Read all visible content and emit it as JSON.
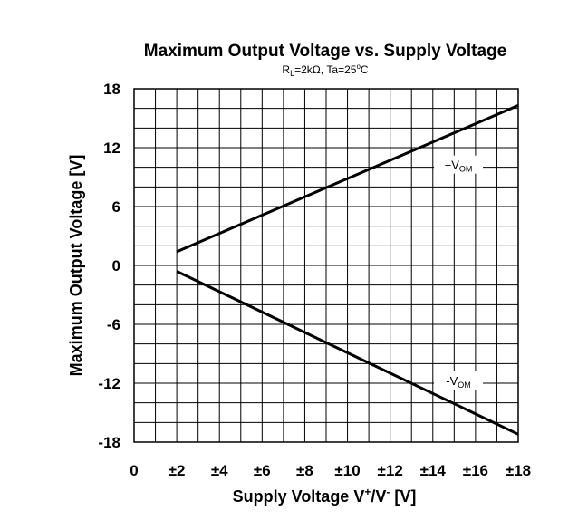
{
  "chart_data": {
    "type": "line",
    "title": "Maximum Output Voltage vs. Supply Voltage",
    "subtitle": {
      "r": "R",
      "r_sub": "L",
      "rest": "=2kΩ, Ta=25",
      "deg": "o",
      "unit": "C"
    },
    "xlabel": {
      "main": "Supply Voltage V",
      "sup1": "+",
      "mid": "/V",
      "sup2": "-",
      "end": " [V]"
    },
    "ylabel": "Maximum Output Voltage [V]",
    "x_ticks": [
      "0",
      "±2",
      "±4",
      "±6",
      "±8",
      "±10",
      "±12",
      "±14",
      "±16",
      "±18"
    ],
    "y_ticks": [
      "18",
      "12",
      "6",
      "0",
      "-6",
      "-12",
      "-18"
    ],
    "xlim": [
      0,
      18
    ],
    "ylim": [
      -18,
      18
    ],
    "grid": true,
    "series": [
      {
        "name": "+VOM",
        "label_main": "+V",
        "label_sub": "OM",
        "x": [
          2,
          18
        ],
        "y": [
          1.4,
          16.3
        ]
      },
      {
        "name": "-VOM",
        "label_main": "-V",
        "label_sub": "OM",
        "x": [
          2,
          18
        ],
        "y": [
          -0.6,
          -17.2
        ]
      }
    ]
  }
}
